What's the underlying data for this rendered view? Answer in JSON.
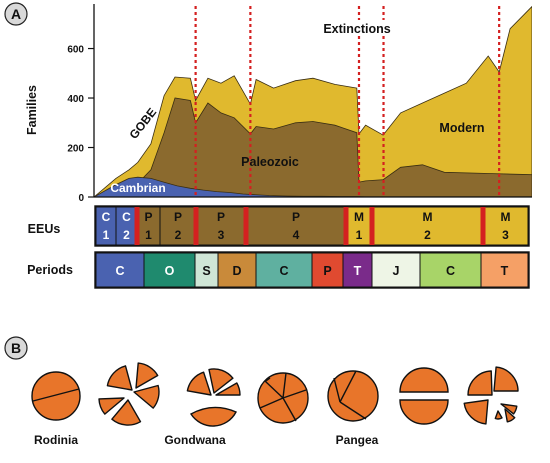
{
  "panel_a": {
    "letter": "A"
  },
  "panel_b": {
    "letter": "B"
  },
  "chart_data": {
    "type": "area",
    "ylabel": "Families",
    "yticks": [
      0,
      200,
      400,
      600
    ],
    "ylim": [
      0,
      780
    ],
    "xlim": [
      0,
      100
    ],
    "extinctions_label": "Extinctions",
    "extinction_x": [
      23.2,
      35.7,
      60.5,
      66.1,
      92.5
    ],
    "annotations": [
      {
        "text": "GOBE"
      },
      {
        "text": "Cambrian"
      },
      {
        "text": "Paleozoic"
      },
      {
        "text": "Modern"
      }
    ],
    "series": [
      {
        "name": "Cambrian",
        "color": "#4a62b0",
        "x": [
          0,
          5,
          8,
          10,
          13,
          16,
          19,
          22,
          25,
          28,
          31,
          34,
          36,
          40,
          44,
          48,
          52,
          56,
          60,
          62,
          66,
          70,
          80,
          90,
          100
        ],
        "values": [
          0,
          50,
          75,
          80,
          75,
          60,
          45,
          35,
          28,
          22,
          18,
          12,
          10,
          6,
          4,
          3,
          3,
          2,
          2,
          1,
          1,
          1,
          1,
          1,
          1
        ]
      },
      {
        "name": "Paleozoic",
        "color": "#8b6a2e",
        "x": [
          0,
          5,
          8,
          10,
          13,
          16,
          18.5,
          22,
          23.2,
          26,
          29,
          32,
          35.7,
          37,
          41,
          46,
          50,
          55,
          60,
          60.5,
          62,
          66,
          70,
          75,
          80,
          90,
          100
        ],
        "values": [
          0,
          15,
          35,
          55,
          110,
          260,
          400,
          390,
          300,
          380,
          340,
          320,
          255,
          285,
          275,
          300,
          305,
          290,
          260,
          60,
          65,
          70,
          120,
          130,
          100,
          95,
          90
        ]
      },
      {
        "name": "Modern",
        "color": "#e0b92e",
        "x": [
          0,
          5,
          8,
          10,
          13,
          16,
          18.5,
          22,
          23.2,
          26,
          29,
          32,
          35.7,
          37,
          41,
          46,
          50,
          55,
          60,
          60.5,
          62,
          66,
          70,
          75,
          80,
          85,
          90,
          92.5,
          95,
          100
        ],
        "values": [
          0,
          75,
          110,
          140,
          215,
          410,
          485,
          480,
          390,
          480,
          460,
          490,
          375,
          475,
          440,
          470,
          480,
          455,
          440,
          255,
          290,
          250,
          340,
          380,
          420,
          460,
          570,
          505,
          680,
          770
        ]
      }
    ],
    "eeus": {
      "label": "EEUs",
      "items": [
        {
          "top": "C",
          "bottom": "1",
          "color": "#4a62b0",
          "text_color": "#ffffff"
        },
        {
          "top": "C",
          "bottom": "2",
          "color": "#4a62b0",
          "text_color": "#ffffff"
        },
        {
          "top": "P",
          "bottom": "1",
          "color": "#8b6a2e",
          "text_color": "#111111"
        },
        {
          "top": "P",
          "bottom": "2",
          "color": "#8b6a2e",
          "text_color": "#111111"
        },
        {
          "top": "P",
          "bottom": "3",
          "color": "#8b6a2e",
          "text_color": "#111111"
        },
        {
          "top": "P",
          "bottom": "4",
          "color": "#8b6a2e",
          "text_color": "#111111"
        },
        {
          "top": "M",
          "bottom": "1",
          "color": "#e0b92e",
          "text_color": "#111111"
        },
        {
          "top": "M",
          "bottom": "2",
          "color": "#e0b92e",
          "text_color": "#111111"
        },
        {
          "top": "M",
          "bottom": "3",
          "color": "#e0b92e",
          "text_color": "#111111"
        }
      ]
    },
    "periods": {
      "label": "Periods",
      "items": [
        {
          "name": "C",
          "color": "#4a62b0",
          "text_color": "#ffffff"
        },
        {
          "name": "O",
          "color": "#1f8a6e",
          "text_color": "#ffffff"
        },
        {
          "name": "S",
          "color": "#cfe6d6",
          "text_color": "#111111"
        },
        {
          "name": "D",
          "color": "#c98a3a",
          "text_color": "#111111"
        },
        {
          "name": "C",
          "color": "#5fb0a0",
          "text_color": "#111111"
        },
        {
          "name": "P",
          "color": "#e04a30",
          "text_color": "#111111"
        },
        {
          "name": "T",
          "color": "#7a2b8a",
          "text_color": "#ffffff"
        },
        {
          "name": "J",
          "color": "#eef5e6",
          "text_color": "#111111"
        },
        {
          "name": "C",
          "color": "#a8d468",
          "text_color": "#111111"
        },
        {
          "name": "T",
          "color": "#f5a066",
          "text_color": "#111111"
        }
      ]
    }
  },
  "continents": {
    "fill_color": "#e8752a",
    "labels": [
      "Rodinia",
      "Gondwana",
      "Pangea"
    ]
  }
}
